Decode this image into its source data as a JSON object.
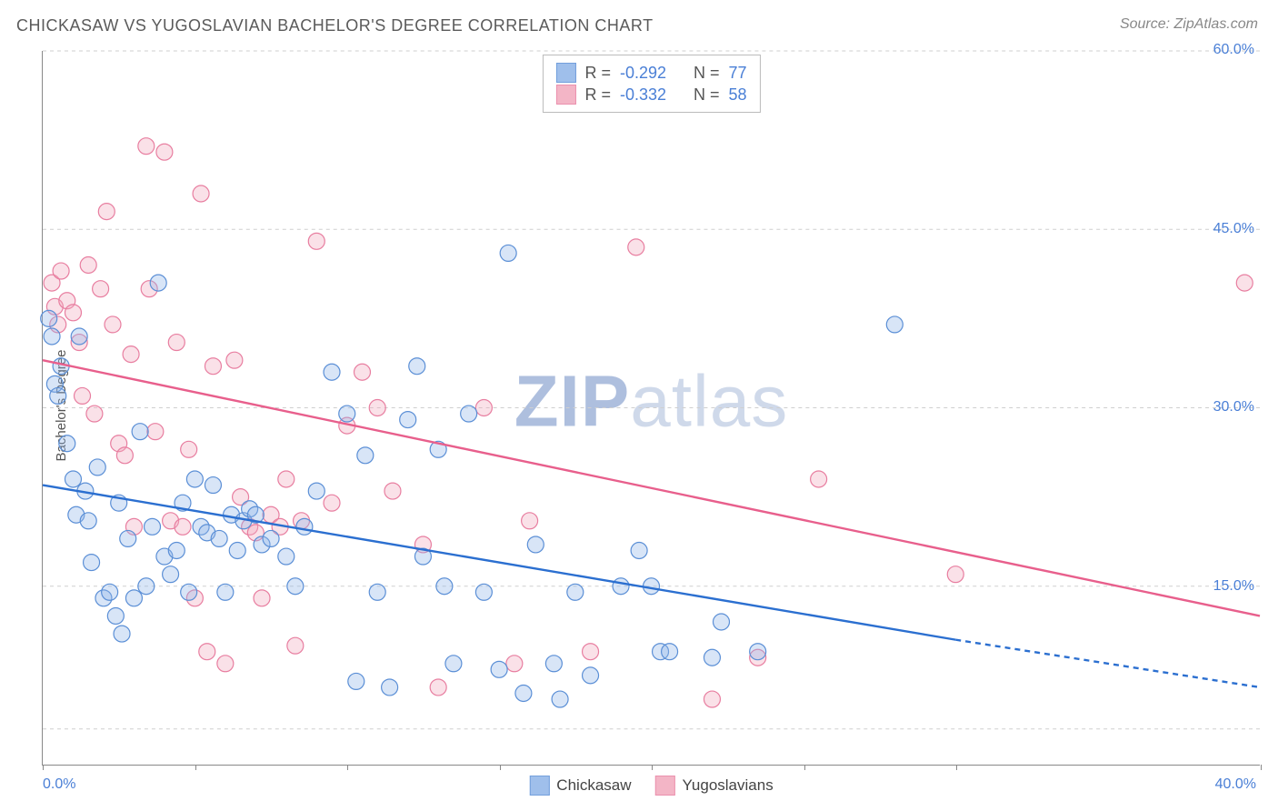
{
  "title": "CHICKASAW VS YUGOSLAVIAN BACHELOR'S DEGREE CORRELATION CHART",
  "source": "Source: ZipAtlas.com",
  "ylabel": "Bachelor's Degree",
  "watermark_a": "ZIP",
  "watermark_b": "atlas",
  "chart": {
    "type": "scatter",
    "xlim": [
      0,
      40
    ],
    "ylim": [
      0,
      60
    ],
    "x_ticks": [
      0,
      5,
      10,
      15,
      20,
      25,
      30,
      40
    ],
    "x_tick_labels": {
      "0": "0.0%",
      "40": "40.0%"
    },
    "y_ticks": [
      15,
      30,
      45,
      60
    ],
    "y_tick_labels": {
      "15": "15.0%",
      "30": "30.0%",
      "45": "45.0%",
      "60": "60.0%"
    },
    "y_grid": [
      3,
      15,
      30,
      45,
      60
    ],
    "background_color": "#ffffff",
    "grid_color": "#cfcfcf",
    "axis_color": "#888888",
    "axis_label_color": "#4a7fd6",
    "marker_radius": 9,
    "marker_stroke_width": 1.2,
    "marker_fill_opacity": 0.35,
    "line_width": 2.4
  },
  "series": {
    "chickasaw": {
      "label": "Chickasaw",
      "color_fill": "#8fb4e8",
      "color_stroke": "#5b8fd6",
      "line_color": "#2b6fd0",
      "r_label": "R =",
      "r_value": "-0.292",
      "n_label": "N =",
      "n_value": "77",
      "trend": {
        "x1": 0,
        "y1": 23.5,
        "x2": 30,
        "y2": 10.5,
        "dash_x2": 40,
        "dash_y2": 6.5
      },
      "points": [
        [
          0.2,
          37.5
        ],
        [
          0.3,
          36.0
        ],
        [
          0.4,
          32.0
        ],
        [
          0.5,
          31.0
        ],
        [
          0.6,
          33.5
        ],
        [
          0.8,
          27.0
        ],
        [
          1.0,
          24.0
        ],
        [
          1.1,
          21.0
        ],
        [
          1.2,
          36.0
        ],
        [
          1.4,
          23.0
        ],
        [
          1.5,
          20.5
        ],
        [
          1.6,
          17.0
        ],
        [
          1.8,
          25.0
        ],
        [
          2.0,
          14.0
        ],
        [
          2.2,
          14.5
        ],
        [
          2.4,
          12.5
        ],
        [
          2.5,
          22.0
        ],
        [
          2.6,
          11.0
        ],
        [
          2.8,
          19.0
        ],
        [
          3.0,
          14.0
        ],
        [
          3.2,
          28.0
        ],
        [
          3.4,
          15.0
        ],
        [
          3.6,
          20.0
        ],
        [
          3.8,
          40.5
        ],
        [
          4.0,
          17.5
        ],
        [
          4.2,
          16.0
        ],
        [
          4.4,
          18.0
        ],
        [
          4.6,
          22.0
        ],
        [
          4.8,
          14.5
        ],
        [
          5.0,
          24.0
        ],
        [
          5.2,
          20.0
        ],
        [
          5.4,
          19.5
        ],
        [
          5.6,
          23.5
        ],
        [
          5.8,
          19.0
        ],
        [
          6.0,
          14.5
        ],
        [
          6.2,
          21.0
        ],
        [
          6.4,
          18.0
        ],
        [
          6.6,
          20.5
        ],
        [
          6.8,
          21.5
        ],
        [
          7.0,
          21.0
        ],
        [
          7.2,
          18.5
        ],
        [
          7.5,
          19.0
        ],
        [
          8.0,
          17.5
        ],
        [
          8.3,
          15.0
        ],
        [
          8.6,
          20.0
        ],
        [
          9.0,
          23.0
        ],
        [
          9.5,
          33.0
        ],
        [
          10.0,
          29.5
        ],
        [
          10.3,
          7.0
        ],
        [
          10.6,
          26.0
        ],
        [
          11.0,
          14.5
        ],
        [
          11.4,
          6.5
        ],
        [
          12.0,
          29.0
        ],
        [
          12.3,
          33.5
        ],
        [
          12.5,
          17.5
        ],
        [
          13.0,
          26.5
        ],
        [
          13.2,
          15.0
        ],
        [
          13.5,
          8.5
        ],
        [
          14.0,
          29.5
        ],
        [
          14.5,
          14.5
        ],
        [
          15.0,
          8.0
        ],
        [
          15.3,
          43.0
        ],
        [
          15.8,
          6.0
        ],
        [
          16.2,
          18.5
        ],
        [
          16.8,
          8.5
        ],
        [
          17.0,
          5.5
        ],
        [
          17.5,
          14.5
        ],
        [
          18.0,
          7.5
        ],
        [
          19.0,
          15.0
        ],
        [
          19.6,
          18.0
        ],
        [
          20.0,
          15.0
        ],
        [
          20.3,
          9.5
        ],
        [
          20.6,
          9.5
        ],
        [
          22.0,
          9.0
        ],
        [
          22.3,
          12.0
        ],
        [
          23.5,
          9.5
        ],
        [
          28.0,
          37.0
        ]
      ]
    },
    "yugoslavians": {
      "label": "Yugoslavians",
      "color_fill": "#f2a9bd",
      "color_stroke": "#e87ea0",
      "line_color": "#e85f8c",
      "r_label": "R =",
      "r_value": "-0.332",
      "n_label": "N =",
      "n_value": "58",
      "trend": {
        "x1": 0,
        "y1": 34.0,
        "x2": 40,
        "y2": 12.5
      },
      "points": [
        [
          0.3,
          40.5
        ],
        [
          0.4,
          38.5
        ],
        [
          0.5,
          37.0
        ],
        [
          0.6,
          41.5
        ],
        [
          0.8,
          39.0
        ],
        [
          1.0,
          38.0
        ],
        [
          1.2,
          35.5
        ],
        [
          1.3,
          31.0
        ],
        [
          1.5,
          42.0
        ],
        [
          1.7,
          29.5
        ],
        [
          1.9,
          40.0
        ],
        [
          2.1,
          46.5
        ],
        [
          2.3,
          37.0
        ],
        [
          2.5,
          27.0
        ],
        [
          2.7,
          26.0
        ],
        [
          2.9,
          34.5
        ],
        [
          3.0,
          20.0
        ],
        [
          3.4,
          52.0
        ],
        [
          3.5,
          40.0
        ],
        [
          3.7,
          28.0
        ],
        [
          4.0,
          51.5
        ],
        [
          4.2,
          20.5
        ],
        [
          4.4,
          35.5
        ],
        [
          4.6,
          20.0
        ],
        [
          4.8,
          26.5
        ],
        [
          5.0,
          14.0
        ],
        [
          5.2,
          48.0
        ],
        [
          5.4,
          9.5
        ],
        [
          5.6,
          33.5
        ],
        [
          6.0,
          8.5
        ],
        [
          6.3,
          34.0
        ],
        [
          6.5,
          22.5
        ],
        [
          6.8,
          20.0
        ],
        [
          7.0,
          19.5
        ],
        [
          7.2,
          14.0
        ],
        [
          7.5,
          21.0
        ],
        [
          7.8,
          20.0
        ],
        [
          8.0,
          24.0
        ],
        [
          8.3,
          10.0
        ],
        [
          8.5,
          20.5
        ],
        [
          9.0,
          44.0
        ],
        [
          9.5,
          22.0
        ],
        [
          10.0,
          28.5
        ],
        [
          10.5,
          33.0
        ],
        [
          11.0,
          30.0
        ],
        [
          11.5,
          23.0
        ],
        [
          12.5,
          18.5
        ],
        [
          13.0,
          6.5
        ],
        [
          14.5,
          30.0
        ],
        [
          15.5,
          8.5
        ],
        [
          16.0,
          20.5
        ],
        [
          18.0,
          9.5
        ],
        [
          19.5,
          43.5
        ],
        [
          22.0,
          5.5
        ],
        [
          23.5,
          9.0
        ],
        [
          25.5,
          24.0
        ],
        [
          30.0,
          16.0
        ],
        [
          39.5,
          40.5
        ]
      ]
    }
  }
}
